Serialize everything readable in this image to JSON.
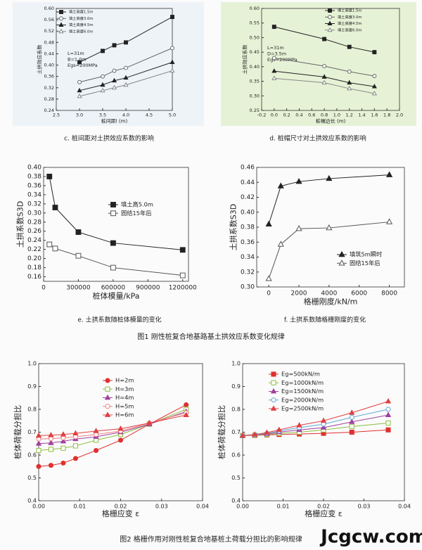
{
  "chart_data": [
    {
      "type": "line",
      "caption": "c. 桩间距对土拱效应系数的影响",
      "x_label": "桩间距l (m)",
      "y_label": "土拱效应系数",
      "annotations": [
        "L=31m",
        "B=1.0m",
        "Egs=200MPa"
      ],
      "x": [
        3.0,
        3.5,
        3.75,
        4.0,
        5.0
      ],
      "xlim": [
        2.5,
        5.0
      ],
      "xticks": [
        2.5,
        {
          "value": 3.0,
          "label": "3.0"
        },
        3.5,
        {
          "value": 4.0,
          "label": "4.0"
        },
        4.5,
        {
          "value": 5.0,
          "label": "5.0"
        }
      ],
      "ylim": [
        0.24,
        0.6
      ],
      "yticks": [
        0.24,
        0.28,
        0.32,
        0.36,
        {
          "value": 0.4,
          "label": "0.40"
        },
        0.44,
        0.48,
        0.52,
        0.56,
        {
          "value": 0.6,
          "label": "0.60"
        }
      ],
      "series": [
        {
          "name": "填土高度1.5m",
          "color": "#222222",
          "marker": "square",
          "values": [
            0.41,
            0.45,
            0.47,
            0.48,
            0.57
          ]
        },
        {
          "name": "填土高度3.0m",
          "color": "#666666",
          "marker": "circle-open",
          "values": [
            0.34,
            0.36,
            0.38,
            0.39,
            0.46
          ]
        },
        {
          "name": "填土高度4.5m",
          "color": "#222222",
          "marker": "triangle",
          "values": [
            0.31,
            0.33,
            0.345,
            0.355,
            0.41
          ]
        },
        {
          "name": "填土高度6.0m",
          "color": "#888888",
          "marker": "triangle-open",
          "values": [
            0.29,
            0.31,
            0.32,
            0.33,
            0.38
          ]
        }
      ]
    },
    {
      "type": "line",
      "caption": "d. 桩帽尺寸对土拱效应系数的影响",
      "x_label": "桩帽边长 (m)",
      "y_label": "土拱效应系数",
      "annotations": [
        "L=31m",
        "D=3.5m",
        "Egs=200MPa"
      ],
      "x": [
        0.0,
        0.8,
        1.2,
        1.6
      ],
      "xlim": [
        -0.2,
        2.0
      ],
      "xticks": [
        -0.2,
        {
          "value": 0.0,
          "label": "0.0"
        },
        0.2,
        0.4,
        0.6,
        0.8,
        {
          "value": 1.0,
          "label": "1.0"
        },
        1.2,
        1.4,
        1.6,
        1.8,
        {
          "value": 2.0,
          "label": "2.0"
        }
      ],
      "ylim": [
        0.25,
        0.6
      ],
      "yticks": [
        0.25,
        {
          "value": 0.3,
          "label": "0.30"
        },
        0.35,
        {
          "value": 0.4,
          "label": "0.40"
        },
        0.45,
        {
          "value": 0.5,
          "label": "0.50"
        },
        0.55,
        {
          "value": 0.6,
          "label": "0.60"
        }
      ],
      "series": [
        {
          "name": "填土高度1.5m",
          "color": "#222222",
          "marker": "square",
          "values": [
            0.537,
            0.495,
            0.468,
            0.45
          ]
        },
        {
          "name": "填土高度3.0m",
          "color": "#666666",
          "marker": "circle-open",
          "values": [
            0.43,
            0.402,
            0.383,
            0.368
          ]
        },
        {
          "name": "填土高度4.5m",
          "color": "#222222",
          "marker": "triangle",
          "values": [
            0.385,
            0.365,
            0.345,
            0.332
          ]
        },
        {
          "name": "填土高度6.0m",
          "color": "#888888",
          "marker": "triangle-open",
          "values": [
            0.36,
            0.345,
            0.325,
            0.308
          ]
        }
      ]
    },
    {
      "type": "line",
      "caption": "e. 土拱系数随桩体模量的变化",
      "x_label": "桩体模量/kPa",
      "y_label": "土拱系数S3D",
      "x": [
        50000,
        100000,
        300000,
        600000,
        1200000
      ],
      "xlim": [
        0,
        1250000
      ],
      "xticks": [
        0,
        300000,
        600000,
        900000,
        1200000
      ],
      "ylim": [
        0.15,
        0.4
      ],
      "yticks": [
        0.16,
        0.18,
        {
          "value": 0.2,
          "label": "0.20"
        },
        0.22,
        0.24,
        0.26,
        0.28,
        {
          "value": 0.3,
          "label": "0.30"
        },
        0.32,
        0.34,
        0.36,
        0.38,
        {
          "value": 0.4,
          "label": "0.40"
        }
      ],
      "series": [
        {
          "name": "填土高5.0m",
          "color": "#222222",
          "marker": "square",
          "values": [
            0.38,
            0.312,
            0.258,
            0.234,
            0.219
          ]
        },
        {
          "name": "固结15年后",
          "color": "#555555",
          "marker": "square-open",
          "values": [
            0.231,
            0.222,
            0.206,
            0.18,
            0.163
          ]
        }
      ]
    },
    {
      "type": "line",
      "caption": "f. 土拱系数随格栅刚度的变化",
      "x_label": "格栅刚度/kN/m",
      "y_label": "土拱系数S3D",
      "x": [
        0,
        800,
        2000,
        4000,
        8000
      ],
      "xlim": [
        -800,
        9000
      ],
      "xticks": [
        0,
        2000,
        4000,
        6000,
        8000
      ],
      "ylim": [
        0.3,
        0.46
      ],
      "yticks": [
        {
          "value": 0.3,
          "label": "0.30"
        },
        0.32,
        0.34,
        0.36,
        0.38,
        {
          "value": 0.4,
          "label": "0.40"
        },
        0.42,
        0.44,
        0.46
      ],
      "series": [
        {
          "name": "填筑5m瞬时",
          "color": "#222222",
          "marker": "triangle",
          "values": [
            0.384,
            0.435,
            0.441,
            0.445,
            0.45
          ]
        },
        {
          "name": "固结15年后",
          "color": "#555555",
          "marker": "triangle-open",
          "values": [
            0.311,
            0.357,
            0.378,
            0.379,
            0.387
          ]
        }
      ]
    },
    {
      "type": "line",
      "x_label": "格栅应变 ε",
      "y_label": "桩体荷载分担比",
      "x": [
        0.0,
        0.003,
        0.006,
        0.009,
        0.014,
        0.02,
        0.027,
        0.036
      ],
      "xlim": [
        0.0,
        0.04
      ],
      "xticks": [
        {
          "value": 0.0,
          "label": "0.00"
        },
        0.01,
        0.02,
        0.03,
        0.04
      ],
      "ylim": [
        0.4,
        1.0
      ],
      "yticks": [
        0.4,
        0.5,
        0.6,
        0.7,
        0.8,
        0.9,
        {
          "value": 1.0,
          "label": "1.0"
        }
      ],
      "series": [
        {
          "name": "H=2m",
          "color": "#e03030",
          "marker": "circle",
          "values": [
            0.55,
            0.555,
            0.565,
            0.585,
            0.62,
            0.665,
            0.735,
            0.82
          ]
        },
        {
          "name": "H=3m",
          "color": "#8cbf3f",
          "marker": "square-open",
          "values": [
            0.62,
            0.625,
            0.63,
            0.64,
            0.665,
            0.69,
            0.735,
            0.8
          ]
        },
        {
          "name": "H=4m",
          "color": "#a040a0",
          "marker": "triangle",
          "values": [
            0.65,
            0.653,
            0.66,
            0.67,
            0.68,
            0.7,
            0.735,
            0.79
          ]
        },
        {
          "name": "H=5m",
          "color": "#f08080",
          "marker": "circle-open",
          "values": [
            0.67,
            0.672,
            0.675,
            0.68,
            0.69,
            0.705,
            0.74,
            0.785
          ]
        },
        {
          "name": "H=6m",
          "color": "#e04040",
          "marker": "triangle",
          "values": [
            0.685,
            0.687,
            0.69,
            0.695,
            0.705,
            0.715,
            0.74,
            0.775
          ]
        }
      ]
    },
    {
      "type": "line",
      "x_label": "格栅应变 ε",
      "y_label": "桩体荷载分担比",
      "x": [
        0.0,
        0.003,
        0.006,
        0.009,
        0.014,
        0.02,
        0.027,
        0.036
      ],
      "xlim": [
        0.0,
        0.04
      ],
      "xticks": [
        {
          "value": 0.0,
          "label": "0.00"
        },
        0.01,
        0.02,
        0.03,
        0.04
      ],
      "ylim": [
        0.4,
        1.0
      ],
      "yticks": [
        0.4,
        0.5,
        0.6,
        0.7,
        0.8,
        0.9,
        {
          "value": 1.0,
          "label": "1.0"
        }
      ],
      "series": [
        {
          "name": "Eg=500kN/m",
          "color": "#e03030",
          "marker": "square",
          "values": [
            0.685,
            0.686,
            0.688,
            0.69,
            0.692,
            0.695,
            0.7,
            0.71
          ]
        },
        {
          "name": "Eg=1000kN/m",
          "color": "#8cbf3f",
          "marker": "square-open",
          "values": [
            0.685,
            0.687,
            0.69,
            0.695,
            0.7,
            0.71,
            0.725,
            0.74
          ]
        },
        {
          "name": "Eg=1500kN/m",
          "color": "#a040a0",
          "marker": "triangle",
          "values": [
            0.685,
            0.688,
            0.692,
            0.7,
            0.71,
            0.72,
            0.745,
            0.775
          ]
        },
        {
          "name": "Eg=2000kN/m",
          "color": "#60a8d8",
          "marker": "circle-open",
          "values": [
            0.685,
            0.689,
            0.695,
            0.705,
            0.72,
            0.735,
            0.765,
            0.8
          ]
        },
        {
          "name": "Eg=2500kN/m",
          "color": "#e04040",
          "marker": "triangle",
          "values": [
            0.685,
            0.69,
            0.698,
            0.71,
            0.73,
            0.75,
            0.785,
            0.835
          ]
        }
      ]
    }
  ],
  "figure_captions": [
    "图1 刚性桩复合地基路基土拱效应系数变化规律",
    "图2 格栅作用对刚性桩复合地基桩土荷载分担比的影响规律"
  ],
  "watermark": "Jcgcw.com"
}
